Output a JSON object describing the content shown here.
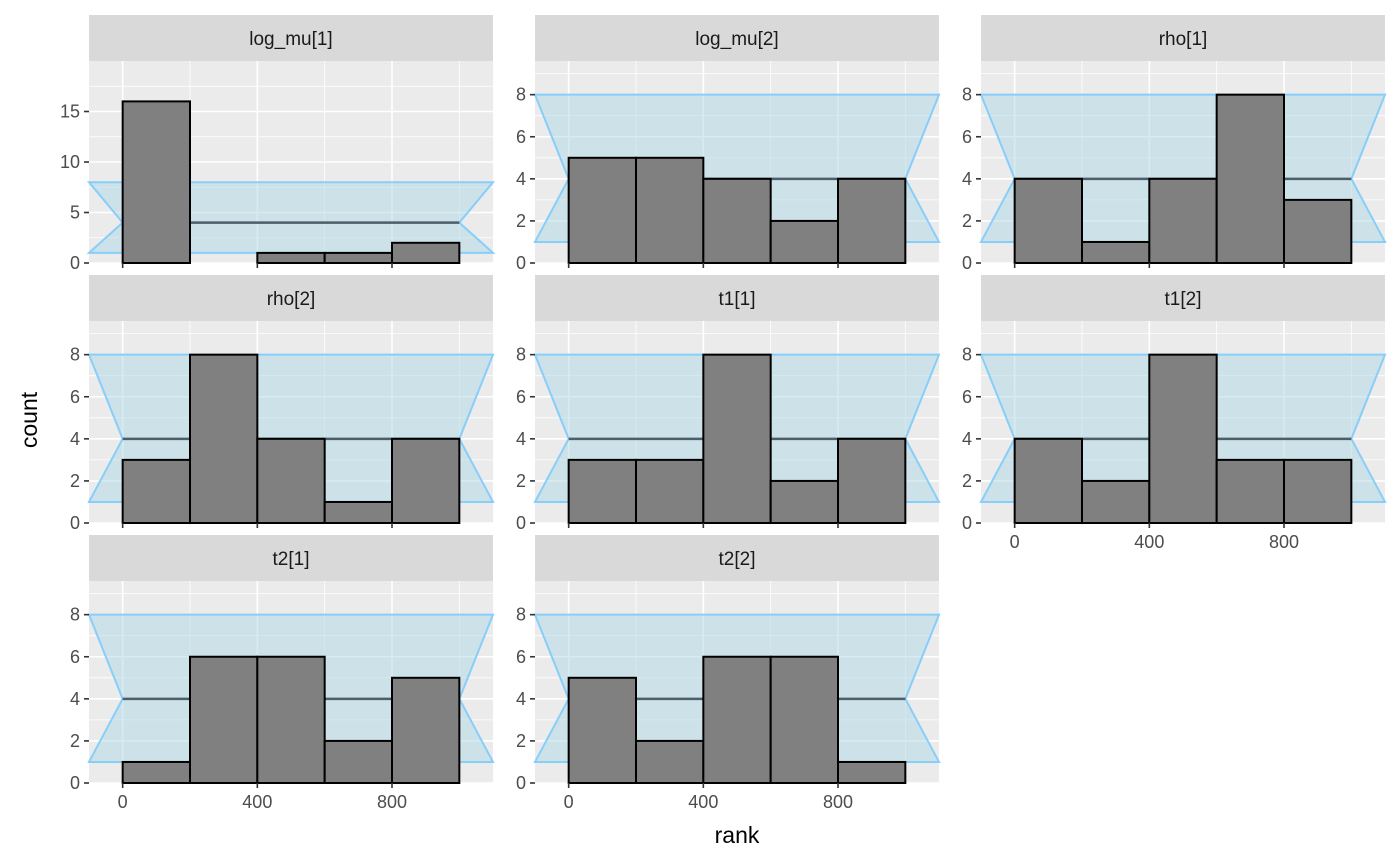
{
  "chart_data": {
    "type": "bar",
    "xlabel": "rank",
    "ylabel": "count",
    "bin_edges": [
      0,
      200,
      400,
      600,
      800,
      1000
    ],
    "xlim": [
      -100,
      1100
    ],
    "x_ticks": [
      0,
      400,
      800
    ],
    "band": {
      "outer_low": 1,
      "outer_high": 8,
      "mid": 4
    },
    "panels": [
      {
        "label": "log_mu[1]",
        "counts": [
          16,
          0,
          1,
          1,
          2
        ],
        "ylim": [
          0,
          20
        ],
        "y_ticks": [
          0,
          5,
          10,
          15
        ]
      },
      {
        "label": "log_mu[2]",
        "counts": [
          5,
          5,
          4,
          2,
          4
        ],
        "ylim": [
          0,
          9.6
        ],
        "y_ticks": [
          0,
          2,
          4,
          6,
          8
        ]
      },
      {
        "label": "rho[1]",
        "counts": [
          4,
          1,
          4,
          8,
          3
        ],
        "ylim": [
          0,
          9.6
        ],
        "y_ticks": [
          0,
          2,
          4,
          6,
          8
        ]
      },
      {
        "label": "rho[2]",
        "counts": [
          3,
          8,
          4,
          1,
          4
        ],
        "ylim": [
          0,
          9.6
        ],
        "y_ticks": [
          0,
          2,
          4,
          6,
          8
        ]
      },
      {
        "label": "t1[1]",
        "counts": [
          3,
          3,
          8,
          2,
          4
        ],
        "ylim": [
          0,
          9.6
        ],
        "y_ticks": [
          0,
          2,
          4,
          6,
          8
        ]
      },
      {
        "label": "t1[2]",
        "counts": [
          4,
          2,
          8,
          3,
          3
        ],
        "ylim": [
          0,
          9.6
        ],
        "y_ticks": [
          0,
          2,
          4,
          6,
          8
        ]
      },
      {
        "label": "t2[1]",
        "counts": [
          1,
          6,
          6,
          2,
          5
        ],
        "ylim": [
          0,
          9.6
        ],
        "y_ticks": [
          0,
          2,
          4,
          6,
          8
        ]
      },
      {
        "label": "t2[2]",
        "counts": [
          5,
          2,
          6,
          6,
          1
        ],
        "ylim": [
          0,
          9.6
        ],
        "y_ticks": [
          0,
          2,
          4,
          6,
          8
        ]
      }
    ]
  }
}
